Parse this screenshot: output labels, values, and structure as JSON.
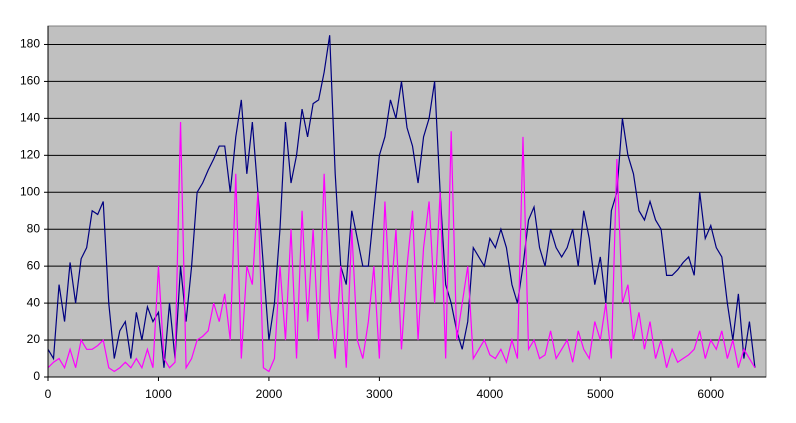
{
  "chart_data": {
    "type": "line",
    "x": [
      0,
      50,
      100,
      150,
      200,
      250,
      300,
      350,
      400,
      450,
      500,
      550,
      600,
      650,
      700,
      750,
      800,
      850,
      900,
      950,
      1000,
      1050,
      1100,
      1150,
      1200,
      1250,
      1300,
      1350,
      1400,
      1450,
      1500,
      1550,
      1600,
      1650,
      1700,
      1750,
      1800,
      1850,
      1900,
      1950,
      2000,
      2050,
      2100,
      2150,
      2200,
      2250,
      2300,
      2350,
      2400,
      2450,
      2500,
      2550,
      2600,
      2650,
      2700,
      2750,
      2800,
      2850,
      2900,
      2950,
      3000,
      3050,
      3100,
      3150,
      3200,
      3250,
      3300,
      3350,
      3400,
      3450,
      3500,
      3550,
      3600,
      3650,
      3700,
      3750,
      3800,
      3850,
      3900,
      3950,
      4000,
      4050,
      4100,
      4150,
      4200,
      4250,
      4300,
      4350,
      4400,
      4450,
      4500,
      4550,
      4600,
      4650,
      4700,
      4750,
      4800,
      4850,
      4900,
      4950,
      5000,
      5050,
      5100,
      5150,
      5200,
      5250,
      5300,
      5350,
      5400,
      5450,
      5500,
      5550,
      5600,
      5650,
      5700,
      5750,
      5800,
      5850,
      5900,
      5950,
      6000,
      6050,
      6100,
      6150,
      6200,
      6250,
      6300,
      6350,
      6400
    ],
    "series": [
      {
        "color": "#000080",
        "values": [
          15,
          10,
          50,
          30,
          62,
          40,
          64,
          70,
          90,
          88,
          95,
          40,
          10,
          25,
          30,
          10,
          35,
          20,
          38,
          30,
          35,
          5,
          40,
          10,
          60,
          30,
          60,
          100,
          105,
          112,
          118,
          125,
          125,
          100,
          130,
          150,
          110,
          138,
          100,
          60,
          20,
          40,
          80,
          138,
          105,
          120,
          145,
          130,
          148,
          150,
          165,
          185,
          110,
          60,
          50,
          90,
          75,
          60,
          60,
          90,
          120,
          130,
          150,
          140,
          160,
          135,
          125,
          105,
          130,
          140,
          160,
          100,
          50,
          40,
          25,
          15,
          30,
          70,
          65,
          60,
          75,
          70,
          80,
          70,
          50,
          40,
          60,
          85,
          92,
          70,
          60,
          80,
          70,
          65,
          70,
          80,
          60,
          90,
          75,
          50,
          65,
          40,
          90,
          100,
          140,
          120,
          110,
          90,
          85,
          95,
          85,
          80,
          55,
          55,
          58,
          62,
          65,
          55,
          100,
          75,
          82,
          70,
          65,
          40,
          20,
          45,
          10,
          30,
          5
        ]
      },
      {
        "color": "#ff00ff",
        "values": [
          5,
          8,
          10,
          5,
          15,
          5,
          20,
          15,
          15,
          17,
          20,
          5,
          3,
          5,
          8,
          5,
          10,
          5,
          15,
          5,
          60,
          10,
          5,
          8,
          138,
          5,
          10,
          20,
          22,
          25,
          40,
          30,
          45,
          20,
          110,
          10,
          60,
          50,
          100,
          5,
          3,
          10,
          60,
          20,
          80,
          10,
          90,
          30,
          80,
          20,
          110,
          40,
          10,
          60,
          5,
          80,
          20,
          10,
          30,
          60,
          10,
          95,
          40,
          80,
          15,
          60,
          90,
          20,
          70,
          95,
          40,
          100,
          10,
          133,
          20,
          40,
          60,
          10,
          15,
          20,
          12,
          10,
          15,
          8,
          20,
          10,
          130,
          15,
          20,
          10,
          12,
          25,
          10,
          15,
          20,
          8,
          25,
          15,
          10,
          30,
          20,
          40,
          10,
          118,
          40,
          50,
          20,
          35,
          15,
          30,
          10,
          20,
          5,
          15,
          8,
          10,
          12,
          15,
          25,
          10,
          20,
          15,
          25,
          10,
          20,
          5,
          15,
          10,
          5
        ]
      }
    ],
    "xlim": [
      0,
      6500
    ],
    "ylim": [
      0,
      190
    ],
    "xticks": [
      0,
      1000,
      2000,
      3000,
      4000,
      5000,
      6000
    ],
    "yticks": [
      0,
      20,
      40,
      60,
      80,
      100,
      120,
      140,
      160,
      180
    ],
    "grid": true,
    "plot_background": "#c0c0c0"
  }
}
